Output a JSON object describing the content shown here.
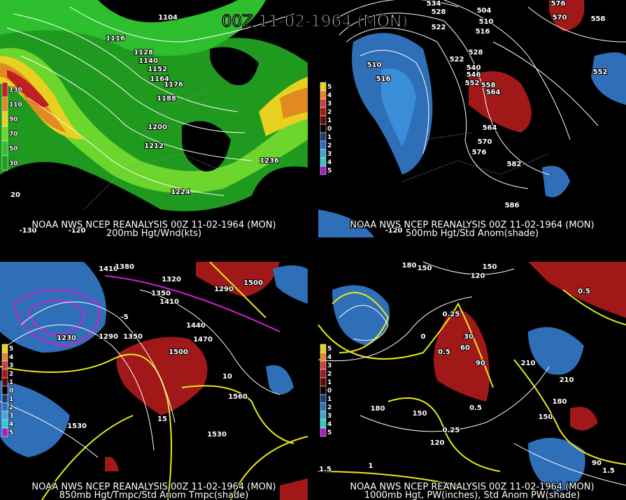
{
  "title": "00Z 11-02-1964 (MON)",
  "panels": [
    {
      "header": "NOAA NWS NCEP REANALYSIS 00Z 11-02-1964 (MON)",
      "subtitle": "200mb Hgt/Wnd(kts)",
      "legend": [
        "130",
        "110",
        "90",
        "70",
        "50",
        "30"
      ],
      "labels": [
        "1104",
        "1116",
        "1128",
        "1140",
        "1152",
        "1164",
        "1176",
        "1188",
        "1200",
        "1212",
        "1224",
        "1236",
        "20",
        "-130",
        "-120"
      ]
    },
    {
      "header": "NOAA NWS NCEP REANALYSIS 00Z 11-02-1964 (MON)",
      "subtitle": "500mb Hgt/Std Anom(shade)",
      "legend": [
        "5",
        "4",
        "3",
        "2",
        "1",
        "0",
        "1",
        "2",
        "3",
        "4",
        "5"
      ],
      "labels": [
        "534",
        "528",
        "522",
        "504",
        "510",
        "516",
        "576",
        "570",
        "558",
        "552",
        "510",
        "516",
        "528",
        "522",
        "540",
        "546",
        "552",
        "558",
        "564",
        "564",
        "570",
        "576",
        "582",
        "586",
        "-120"
      ]
    },
    {
      "header": "NOAA NWS NCEP REANALYSIS 00Z 11-02-1964 (MON)",
      "subtitle": "850mb Hgt/Tmpc/Std Anom Tmpc(shade)",
      "legend": [
        "5",
        "4",
        "3",
        "2",
        "1",
        "0",
        "1",
        "2",
        "3",
        "4",
        "5"
      ],
      "labels": [
        "1410",
        "1380",
        "1320",
        "1350",
        "1410",
        "1290",
        "1500",
        "1440",
        "1470",
        "1290",
        "1350",
        "1500",
        "1560",
        "1530",
        "1530",
        "10",
        "15",
        "-5",
        "1230"
      ]
    },
    {
      "header": "NOAA NWS NCEP REANALYSIS 00Z 11-02-1964 (MON)",
      "subtitle": "1000mb Hgt, PW(inches), Std Anom PW(shade)",
      "legend": [
        "5",
        "4",
        "3",
        "2",
        "1",
        "0",
        "1",
        "2",
        "3",
        "4",
        "5"
      ],
      "labels": [
        "180",
        "150",
        "120",
        "150",
        "0.25",
        "30",
        "60",
        "90",
        "0.5",
        "0.5",
        "0.25",
        "180",
        "150",
        "120",
        "210",
        "210",
        "180",
        "150",
        "90",
        "1.5",
        "1",
        "1.5",
        "0.5",
        "0"
      ]
    }
  ]
}
